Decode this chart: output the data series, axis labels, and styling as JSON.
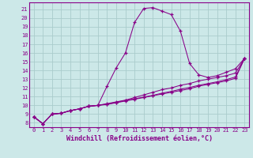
{
  "xlabel": "Windchill (Refroidissement éolien,°C)",
  "background_color": "#cce8e8",
  "line_color": "#880088",
  "grid_color": "#aacccc",
  "xlim": [
    -0.5,
    23.5
  ],
  "ylim": [
    7.5,
    21.8
  ],
  "xticks": [
    0,
    1,
    2,
    3,
    4,
    5,
    6,
    7,
    8,
    9,
    10,
    11,
    12,
    13,
    14,
    15,
    16,
    17,
    18,
    19,
    20,
    21,
    22,
    23
  ],
  "yticks": [
    8,
    9,
    10,
    11,
    12,
    13,
    14,
    15,
    16,
    17,
    18,
    19,
    20,
    21
  ],
  "series": [
    [
      8.7,
      7.9,
      9.0,
      9.1,
      9.4,
      9.6,
      9.9,
      10.0,
      12.2,
      14.3,
      16.0,
      19.5,
      21.1,
      21.2,
      20.8,
      20.4,
      18.5,
      14.8,
      13.5,
      13.2,
      13.4,
      13.8,
      14.2,
      15.4
    ],
    [
      8.7,
      7.9,
      9.0,
      9.1,
      9.4,
      9.6,
      9.9,
      10.0,
      10.2,
      10.4,
      10.6,
      10.9,
      11.2,
      11.5,
      11.8,
      12.0,
      12.3,
      12.5,
      12.8,
      13.0,
      13.2,
      13.4,
      13.7,
      15.4
    ],
    [
      8.7,
      7.9,
      9.0,
      9.1,
      9.4,
      9.6,
      9.9,
      10.0,
      10.15,
      10.35,
      10.55,
      10.75,
      10.95,
      11.15,
      11.4,
      11.6,
      11.85,
      12.05,
      12.3,
      12.5,
      12.7,
      12.95,
      13.25,
      15.4
    ],
    [
      8.7,
      7.9,
      9.0,
      9.1,
      9.4,
      9.6,
      9.9,
      10.0,
      10.1,
      10.3,
      10.5,
      10.7,
      10.9,
      11.1,
      11.3,
      11.5,
      11.7,
      11.9,
      12.2,
      12.4,
      12.6,
      12.8,
      13.1,
      15.4
    ]
  ]
}
